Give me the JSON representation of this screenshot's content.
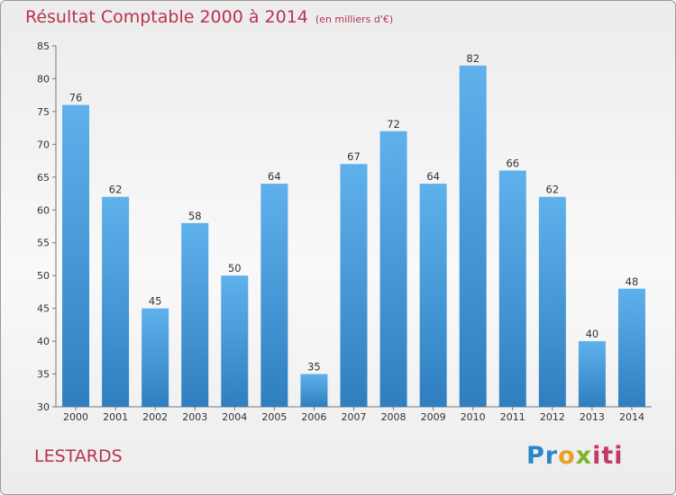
{
  "title": "Résultat Comptable 2000 à 2014",
  "subtitle": "(en milliers d'€)",
  "commune": "LESTARDS",
  "logo": {
    "p1": "Pr",
    "p2": "o",
    "p3": "x",
    "p4": "iti"
  },
  "colors": {
    "bar_top": "#5fb1ec",
    "bar_bottom": "#2f7fc0",
    "title": "#b8334e"
  },
  "chart_data": {
    "type": "bar",
    "title": "Résultat Comptable 2000 à 2014",
    "xlabel": "",
    "ylabel": "",
    "categories": [
      "2000",
      "2001",
      "2002",
      "2003",
      "2004",
      "2005",
      "2006",
      "2007",
      "2008",
      "2009",
      "2010",
      "2011",
      "2012",
      "2013",
      "2014"
    ],
    "values": [
      76,
      62,
      45,
      58,
      50,
      64,
      35,
      67,
      72,
      64,
      82,
      66,
      62,
      40,
      48
    ],
    "ylim": [
      30,
      85
    ],
    "yticks": [
      30,
      35,
      40,
      45,
      50,
      55,
      60,
      65,
      70,
      75,
      80,
      85
    ],
    "grid": false
  }
}
